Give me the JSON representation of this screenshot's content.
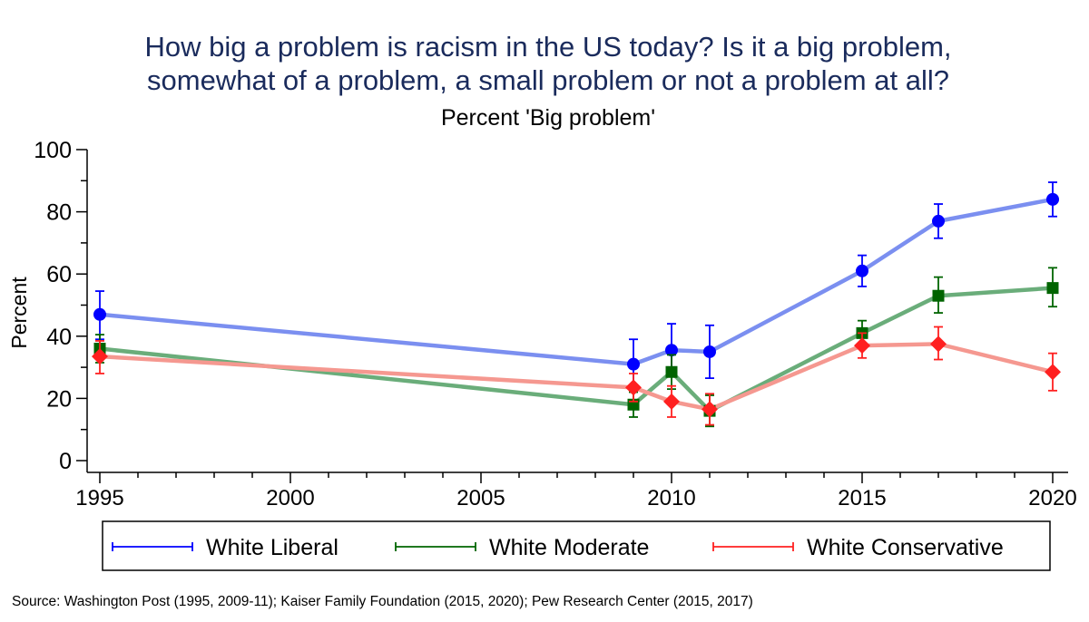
{
  "chart_data": {
    "type": "line",
    "title_lines": [
      "How big a problem is racism in the US today? Is it a big problem,",
      "somewhat of a problem, a small problem or not a problem at all?"
    ],
    "subtitle": "Percent 'Big problem'",
    "ylabel": "Percent",
    "xlabel": "",
    "xlim": [
      1995,
      2020
    ],
    "ylim": [
      0,
      100
    ],
    "x_ticks": [
      1995,
      2000,
      2005,
      2010,
      2015,
      2020
    ],
    "y_ticks": [
      0,
      20,
      40,
      60,
      80,
      100
    ],
    "grid": false,
    "legend_position": "bottom",
    "series": [
      {
        "name": "White Liberal",
        "color": "#0000ff",
        "line_color": "#7b8ff0",
        "marker": "circle",
        "x": [
          1995,
          2009,
          2010,
          2011,
          2015,
          2017,
          2020
        ],
        "values": [
          47,
          31,
          35.5,
          35,
          61,
          77,
          84
        ],
        "ci_low": [
          39,
          23.5,
          27,
          26.5,
          56,
          71.5,
          78.5
        ],
        "ci_high": [
          54.5,
          39,
          44,
          43.5,
          66,
          82.5,
          89.5
        ]
      },
      {
        "name": "White Moderate",
        "color": "#006400",
        "line_color": "#6aad7a",
        "marker": "square",
        "x": [
          1995,
          2009,
          2010,
          2011,
          2015,
          2017,
          2020
        ],
        "values": [
          36,
          18,
          28.5,
          16,
          41,
          53,
          55.5
        ],
        "ci_low": [
          31.5,
          14,
          23,
          11,
          37,
          47.5,
          49.5
        ],
        "ci_high": [
          40.5,
          22,
          34,
          21,
          45,
          59,
          62
        ]
      },
      {
        "name": "White Conservative",
        "color": "#ff2020",
        "line_color": "#f59890",
        "marker": "diamond",
        "x": [
          1995,
          2009,
          2010,
          2011,
          2015,
          2017,
          2020
        ],
        "values": [
          33.5,
          23.5,
          19,
          16.5,
          37,
          37.5,
          28.5
        ],
        "ci_low": [
          28,
          19,
          14,
          11.5,
          33,
          32.5,
          22.5
        ],
        "ci_high": [
          38.5,
          28,
          24,
          21.5,
          41,
          43,
          34.5
        ]
      }
    ],
    "source": "Source: Washington Post (1995, 2009-11); Kaiser Family Foundation (2015, 2020); Pew Research Center (2015, 2017)"
  }
}
